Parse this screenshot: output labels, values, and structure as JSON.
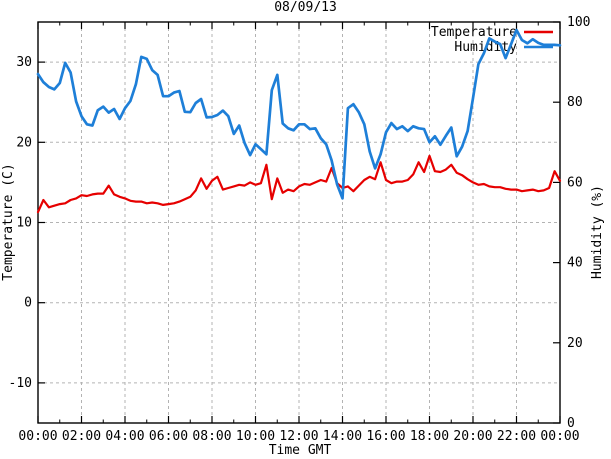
{
  "title": "08/09/13",
  "axes": {
    "x": {
      "label": "Time GMT",
      "tick_hours": [
        0,
        2,
        4,
        6,
        8,
        10,
        12,
        14,
        16,
        18,
        20,
        22,
        24
      ],
      "tick_labels": [
        "00:00",
        "02:00",
        "04:00",
        "06:00",
        "08:00",
        "10:00",
        "12:00",
        "14:00",
        "16:00",
        "18:00",
        "20:00",
        "22:00",
        "00:00"
      ],
      "minor_tick_hours": [
        1,
        3,
        5,
        7,
        9,
        11,
        13,
        15,
        17,
        19,
        21,
        23
      ],
      "range_hours": [
        0,
        24
      ]
    },
    "y_left": {
      "label": "Temperature (C)",
      "ticks": [
        30,
        20,
        10,
        0,
        -10
      ],
      "range": [
        -15,
        35
      ],
      "gridlines": true
    },
    "y_right": {
      "label": "Humidity (%)",
      "ticks": [
        100,
        80,
        60,
        40,
        20,
        0
      ],
      "range": [
        0,
        100
      ],
      "gridlines": false
    }
  },
  "legend": {
    "position": "top-right-inside",
    "entries": [
      {
        "label": "Temperature",
        "color": "#e60000"
      },
      {
        "label": "Humidity",
        "color": "#1e7fd8"
      }
    ]
  },
  "colors": {
    "temperature": "#e60000",
    "humidity": "#1e7fd8",
    "grid": "#b3b3b3",
    "border": "#000000",
    "background": "#ffffff"
  },
  "chart_data": {
    "type": "line",
    "title": "08/09/13",
    "xlabel": "Time GMT",
    "x_unit": "hours_gmt",
    "x_step_hours": 0.25,
    "grid": "dashed",
    "legend_position": "top-right",
    "series": [
      {
        "name": "Temperature",
        "axis": "left",
        "unit": "C",
        "color": "#e60000",
        "x": [
          0,
          0.25,
          0.5,
          0.75,
          1,
          1.25,
          1.5,
          1.75,
          2,
          2.25,
          2.5,
          2.75,
          3,
          3.25,
          3.5,
          3.75,
          4,
          4.25,
          4.5,
          4.75,
          5,
          5.25,
          5.5,
          5.75,
          6,
          6.25,
          6.5,
          6.75,
          7,
          7.25,
          7.5,
          7.75,
          8,
          8.25,
          8.5,
          8.75,
          9,
          9.25,
          9.5,
          9.75,
          10,
          10.25,
          10.5,
          10.75,
          11,
          11.25,
          11.5,
          11.75,
          12,
          12.25,
          12.5,
          12.75,
          13,
          13.25,
          13.5,
          13.75,
          14,
          14.25,
          14.5,
          14.75,
          15,
          15.25,
          15.5,
          15.75,
          16,
          16.25,
          16.5,
          16.75,
          17,
          17.25,
          17.5,
          17.75,
          18,
          18.25,
          18.5,
          18.75,
          19,
          19.25,
          19.5,
          19.75,
          20,
          20.25,
          20.5,
          20.75,
          21,
          21.25,
          21.5,
          21.75,
          22,
          22.25,
          22.5,
          22.75,
          23,
          23.25,
          23.5,
          23.75,
          24
        ],
        "values": [
          11.3,
          12.8,
          11.9,
          12.1,
          12.3,
          12.4,
          12.8,
          13.0,
          13.4,
          13.3,
          13.5,
          13.6,
          13.6,
          14.6,
          13.5,
          13.2,
          13.0,
          12.7,
          12.6,
          12.6,
          12.4,
          12.5,
          12.4,
          12.2,
          12.3,
          12.4,
          12.6,
          12.9,
          13.2,
          14.0,
          15.5,
          14.2,
          15.2,
          15.7,
          14.1,
          14.3,
          14.5,
          14.7,
          14.6,
          15.0,
          14.7,
          14.9,
          17.2,
          12.9,
          15.5,
          13.7,
          14.1,
          13.9,
          14.5,
          14.8,
          14.7,
          15.0,
          15.3,
          15.1,
          16.8,
          14.9,
          14.3,
          14.5,
          13.9,
          14.6,
          15.3,
          15.7,
          15.4,
          17.5,
          15.3,
          14.9,
          15.1,
          15.1,
          15.3,
          16.0,
          17.5,
          16.3,
          18.3,
          16.4,
          16.3,
          16.6,
          17.2,
          16.2,
          15.9,
          15.4,
          15.0,
          14.7,
          14.8,
          14.5,
          14.4,
          14.4,
          14.2,
          14.1,
          14.1,
          13.9,
          14.0,
          14.1,
          13.9,
          14.0,
          14.3,
          16.4,
          15.2
        ]
      },
      {
        "name": "Humidity",
        "axis": "right",
        "unit": "%",
        "color": "#1e7fd8",
        "x": [
          0,
          0.25,
          0.5,
          0.75,
          1,
          1.25,
          1.5,
          1.75,
          2,
          2.25,
          2.5,
          2.75,
          3,
          3.25,
          3.5,
          3.75,
          4,
          4.25,
          4.5,
          4.75,
          5,
          5.25,
          5.5,
          5.75,
          6,
          6.25,
          6.5,
          6.75,
          7,
          7.25,
          7.5,
          7.75,
          8,
          8.25,
          8.5,
          8.75,
          9,
          9.25,
          9.5,
          9.75,
          10,
          10.25,
          10.5,
          10.75,
          11,
          11.25,
          11.5,
          11.75,
          12,
          12.25,
          12.5,
          12.75,
          13,
          13.25,
          13.5,
          13.75,
          14,
          14.25,
          14.5,
          14.75,
          15,
          15.25,
          15.5,
          15.75,
          16,
          16.25,
          16.5,
          16.75,
          17,
          17.25,
          17.5,
          17.75,
          18,
          18.25,
          18.5,
          18.75,
          19,
          19.25,
          19.5,
          19.75,
          20,
          20.25,
          20.5,
          20.75,
          21,
          21.25,
          21.5,
          21.75,
          22,
          22.25,
          22.5,
          22.75,
          23,
          23.25,
          23.5,
          23.75,
          24
        ],
        "values": [
          87,
          85,
          83.8,
          83.2,
          84.8,
          89.8,
          87.4,
          80.2,
          76.5,
          74.5,
          74.2,
          78,
          78.9,
          77.4,
          78.3,
          75.8,
          78.5,
          80.3,
          84.5,
          91.3,
          90.8,
          88,
          86.8,
          81.5,
          81.5,
          82.4,
          82.8,
          77.6,
          77.5,
          79.8,
          80.8,
          76.2,
          76.3,
          76.8,
          77.9,
          76.5,
          72.1,
          74.2,
          69.8,
          66.8,
          69.5,
          68.3,
          67.0,
          83,
          86.8,
          74.7,
          73.5,
          73,
          74.5,
          74.5,
          73.3,
          73.5,
          71,
          69.5,
          65.5,
          59.5,
          56,
          78.5,
          79.5,
          77.5,
          74.5,
          67.7,
          63.5,
          67,
          72.5,
          74.8,
          73.3,
          74,
          72.8,
          74,
          73.5,
          73.3,
          70,
          71.5,
          69.4,
          71.6,
          73.7,
          66.5,
          68.9,
          72.8,
          81,
          89.5,
          92.2,
          95.9,
          95.1,
          94.5,
          91,
          94.5,
          98,
          95.5,
          94.7,
          95.7,
          94.8,
          94.3,
          94.3,
          94.3,
          94.2
        ]
      }
    ]
  }
}
